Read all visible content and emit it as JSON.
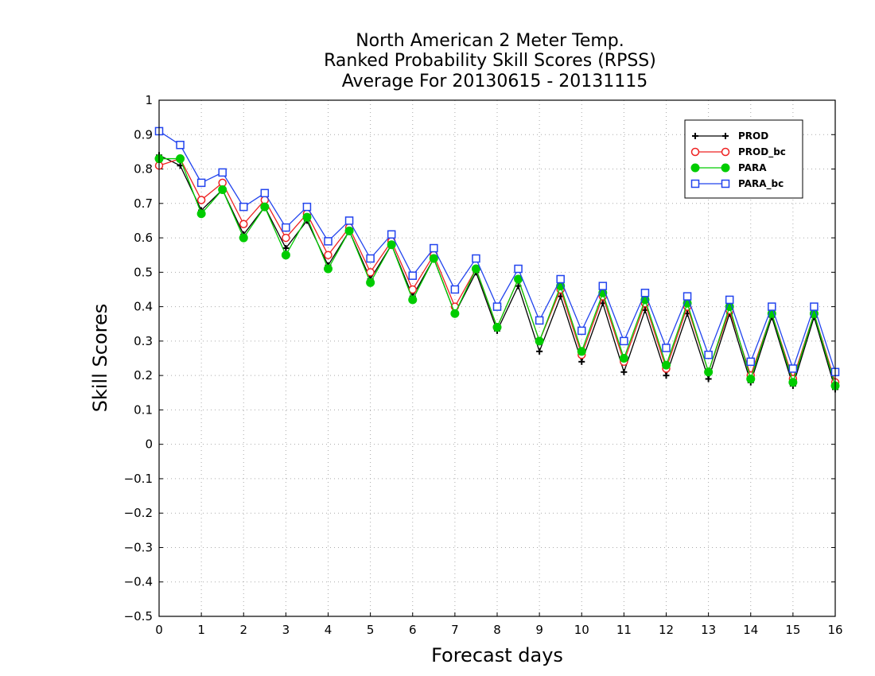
{
  "chart_data": {
    "type": "line",
    "title_lines": [
      "North American 2 Meter Temp.",
      "Ranked Probability Skill Scores (RPSS)",
      "Average For 20130615 - 20131115"
    ],
    "xlabel": "Forecast days",
    "ylabel": "Skill Scores",
    "xlim": [
      0,
      16
    ],
    "ylim": [
      -0.5,
      1
    ],
    "xticks": [
      0,
      1,
      2,
      3,
      4,
      5,
      6,
      7,
      8,
      9,
      10,
      11,
      12,
      13,
      14,
      15,
      16
    ],
    "yticks": [
      -0.5,
      -0.4,
      -0.3,
      -0.2,
      -0.1,
      0,
      0.1,
      0.2,
      0.3,
      0.4,
      0.5,
      0.6,
      0.7,
      0.8,
      0.9,
      1
    ],
    "ytick_labels": [
      "−0.5",
      "−0.4",
      "−0.3",
      "−0.2",
      "−0.1",
      "0",
      "0.1",
      "0.2",
      "0.3",
      "0.4",
      "0.5",
      "0.6",
      "0.7",
      "0.8",
      "0.9",
      "1"
    ],
    "grid": true,
    "legend_position": "top-right",
    "x": [
      0,
      0.5,
      1,
      1.5,
      2,
      2.5,
      3,
      3.5,
      4,
      4.5,
      5,
      5.5,
      6,
      6.5,
      7,
      7.5,
      8,
      8.5,
      9,
      9.5,
      10,
      10.5,
      11,
      11.5,
      12,
      12.5,
      13,
      13.5,
      14,
      14.5,
      15,
      15.5,
      16
    ],
    "series": [
      {
        "name": "PROD",
        "color": "#000000",
        "marker": "plus",
        "values": [
          0.84,
          0.81,
          0.68,
          0.74,
          0.61,
          0.69,
          0.57,
          0.65,
          0.52,
          0.62,
          0.48,
          0.58,
          0.43,
          0.54,
          0.38,
          0.5,
          0.33,
          0.46,
          0.27,
          0.43,
          0.24,
          0.41,
          0.21,
          0.39,
          0.2,
          0.38,
          0.19,
          0.38,
          0.18,
          0.37,
          0.17,
          0.37,
          0.16
        ]
      },
      {
        "name": "PROD_bc",
        "color": "#ee2222",
        "marker": "circle",
        "values": [
          0.81,
          0.83,
          0.71,
          0.76,
          0.64,
          0.71,
          0.6,
          0.67,
          0.55,
          0.63,
          0.5,
          0.59,
          0.45,
          0.55,
          0.4,
          0.51,
          0.34,
          0.48,
          0.3,
          0.45,
          0.26,
          0.43,
          0.24,
          0.41,
          0.22,
          0.4,
          0.21,
          0.39,
          0.2,
          0.38,
          0.19,
          0.38,
          0.18
        ]
      },
      {
        "name": "PARA",
        "color": "#00cc00",
        "marker": "filled-circle",
        "values": [
          0.83,
          0.83,
          0.67,
          0.74,
          0.6,
          0.69,
          0.55,
          0.66,
          0.51,
          0.62,
          0.47,
          0.58,
          0.42,
          0.54,
          0.38,
          0.51,
          0.34,
          0.48,
          0.3,
          0.46,
          0.27,
          0.44,
          0.25,
          0.42,
          0.23,
          0.41,
          0.21,
          0.4,
          0.19,
          0.38,
          0.18,
          0.38,
          0.17
        ]
      },
      {
        "name": "PARA_bc",
        "color": "#2244ee",
        "marker": "square",
        "values": [
          0.91,
          0.87,
          0.76,
          0.79,
          0.69,
          0.73,
          0.63,
          0.69,
          0.59,
          0.65,
          0.54,
          0.61,
          0.49,
          0.57,
          0.45,
          0.54,
          0.4,
          0.51,
          0.36,
          0.48,
          0.33,
          0.46,
          0.3,
          0.44,
          0.28,
          0.43,
          0.26,
          0.42,
          0.24,
          0.4,
          0.22,
          0.4,
          0.21
        ]
      }
    ]
  }
}
